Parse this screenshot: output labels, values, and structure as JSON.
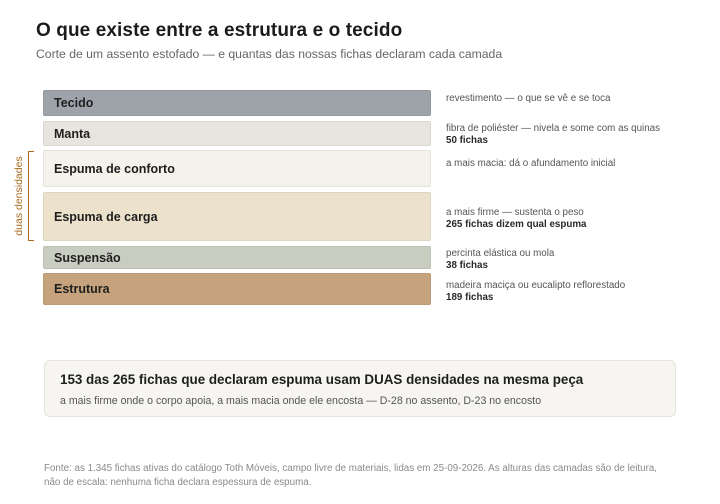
{
  "header": {
    "title": "O que existe entre a estrutura e o tecido",
    "subtitle": "Corte de um assento estofado — e quantas das nossas fichas declaram cada camada"
  },
  "layers": [
    {
      "name": "Tecido",
      "color": "#9ea3a9",
      "note": "revestimento — o que se vê e se toca",
      "count": ""
    },
    {
      "name": "Manta",
      "color": "#e7e4dd",
      "note": "fibra de poliéster — nivela e some com as quinas",
      "count": "50 fichas"
    },
    {
      "name": "Espuma de conforto",
      "color": "#f4f2ea",
      "note": "a mais macia: dá o afundamento inicial",
      "count": ""
    },
    {
      "name": "Espuma de carga",
      "color": "#ece2cc",
      "note": "a mais firme — sustenta o peso",
      "count": "265 fichas dizem qual espuma"
    },
    {
      "name": "Suspensão",
      "color": "#c9cdc1",
      "note": "percinta elástica ou mola",
      "count": "38 fichas"
    },
    {
      "name": "Estrutura",
      "color": "#c7a37d",
      "note": "madeira maciça ou eucalipto reflorestado",
      "count": "189 fichas"
    }
  ],
  "bracket": {
    "label": "duas densidades",
    "color": "#a86a1d"
  },
  "callout": {
    "headline": "153 das 265 fichas que declaram espuma usam DUAS densidades na mesma peça",
    "body": "a mais firme onde o corpo apoia, a mais macia onde ele encosta — D-28 no assento, D-23 no encosto"
  },
  "source": "Fonte: as 1.345 fichas ativas do catálogo Toth Móveis, campo livre de materiais, lidas em 25-09-2026. As alturas das camadas são de leitura, não de escala: nenhuma ficha declara espessura de espuma."
}
